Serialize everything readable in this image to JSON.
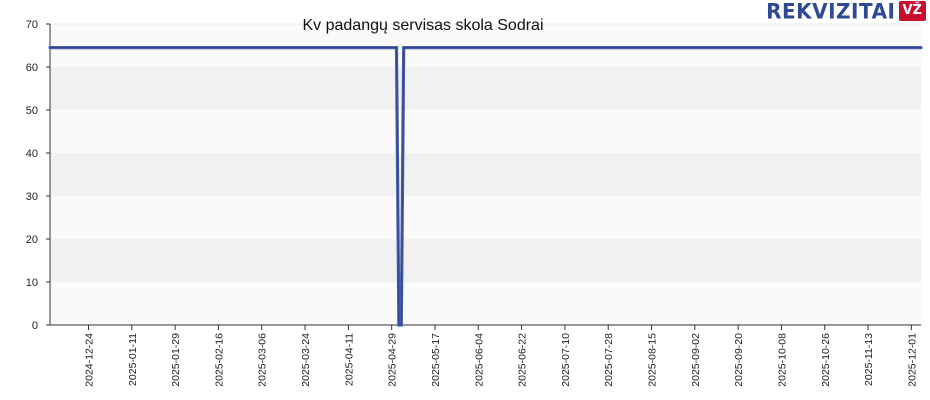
{
  "brand": {
    "name": "REKVIZITAI",
    "badge": "VŽ",
    "color": "#2e4a94",
    "badge_color": "#c8102e"
  },
  "chart_data": {
    "type": "line",
    "title": "Kv padangų servisas skola Sodrai",
    "xlabel": "",
    "ylabel": "",
    "ylim": [
      0,
      70
    ],
    "yticks": [
      0,
      10,
      20,
      30,
      40,
      50,
      60,
      70
    ],
    "xlim": [
      "2024-12-08",
      "2025-12-05"
    ],
    "xticks": [
      "2024-12-24",
      "2025-01-11",
      "2025-01-29",
      "2025-02-16",
      "2025-03-06",
      "2025-03-24",
      "2025-04-11",
      "2025-04-29",
      "2025-05-17",
      "2025-06-04",
      "2025-06-22",
      "2025-07-10",
      "2025-07-28",
      "2025-08-15",
      "2025-09-02",
      "2025-09-20",
      "2025-10-08",
      "2025-10-26",
      "2025-11-13",
      "2025-12-01"
    ],
    "grid": true,
    "line_color": "#4a5fa8",
    "series": [
      {
        "name": "",
        "points": [
          {
            "x": "2024-12-08",
            "y": 64.5
          },
          {
            "x": "2025-05-01",
            "y": 64.5
          },
          {
            "x": "2025-05-02",
            "y": 0
          },
          {
            "x": "2025-05-03",
            "y": 0
          },
          {
            "x": "2025-05-04",
            "y": 64.5
          },
          {
            "x": "2025-12-05",
            "y": 64.5
          }
        ]
      }
    ]
  }
}
